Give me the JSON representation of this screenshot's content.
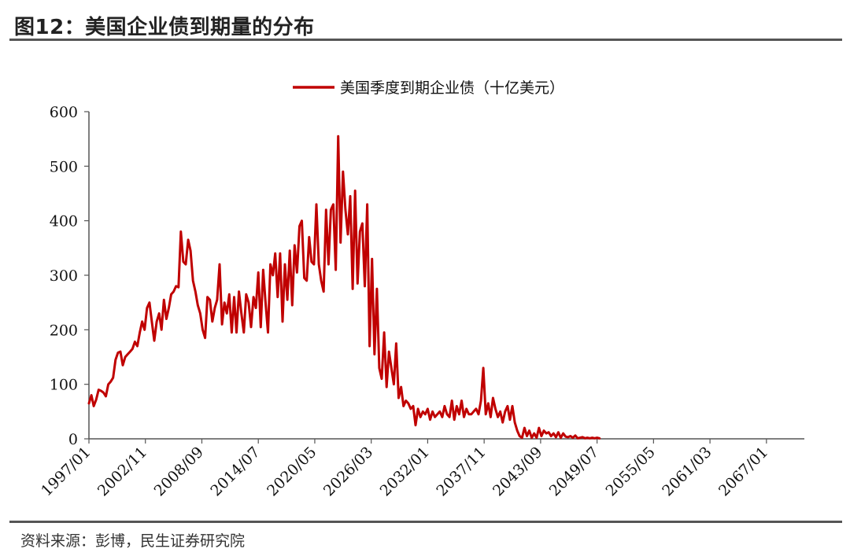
{
  "figure": {
    "title": "图12：美国企业债到期量的分布",
    "source": "资料来源：彭博，民生证券研究院"
  },
  "colors": {
    "series": "#c00000",
    "axis": "#555555",
    "rule": "#555555"
  },
  "chart_data": {
    "type": "line",
    "legend": {
      "position": "top-center"
    },
    "grid": false,
    "ylim": [
      0,
      600
    ],
    "yticks": [
      "0",
      "100",
      "200",
      "300",
      "400",
      "500",
      "600"
    ],
    "xticks": [
      "1997/01",
      "2002/11",
      "2008/09",
      "2014/07",
      "2020/05",
      "2026/03",
      "2032/01",
      "2037/11",
      "2043/09",
      "2049/07",
      "2055/05",
      "2061/03",
      "2067/01"
    ],
    "x_start": "1997/01",
    "x_end": "2070/12",
    "frequency": "quarterly",
    "series": [
      {
        "name": "美国季度到期企业债（十亿美元）",
        "keypoints": [
          [
            "1997/01",
            65
          ],
          [
            "1997/04",
            80
          ],
          [
            "1997/07",
            60
          ],
          [
            "1997/10",
            72
          ],
          [
            "1998/01",
            90
          ],
          [
            "1998/04",
            88
          ],
          [
            "1998/07",
            85
          ],
          [
            "1998/10",
            78
          ],
          [
            "1999/01",
            100
          ],
          [
            "1999/04",
            105
          ],
          [
            "1999/07",
            112
          ],
          [
            "1999/10",
            145
          ],
          [
            "2000/01",
            158
          ],
          [
            "2000/04",
            160
          ],
          [
            "2000/07",
            135
          ],
          [
            "2000/10",
            150
          ],
          [
            "2001/01",
            155
          ],
          [
            "2001/04",
            160
          ],
          [
            "2001/07",
            165
          ],
          [
            "2001/10",
            178
          ],
          [
            "2002/01",
            170
          ],
          [
            "2002/04",
            195
          ],
          [
            "2002/07",
            215
          ],
          [
            "2002/10",
            200
          ],
          [
            "2003/01",
            240
          ],
          [
            "2003/04",
            250
          ],
          [
            "2003/07",
            215
          ],
          [
            "2003/10",
            180
          ],
          [
            "2004/01",
            215
          ],
          [
            "2004/04",
            230
          ],
          [
            "2004/07",
            200
          ],
          [
            "2004/10",
            255
          ],
          [
            "2005/01",
            220
          ],
          [
            "2005/04",
            240
          ],
          [
            "2005/07",
            265
          ],
          [
            "2005/10",
            270
          ],
          [
            "2006/01",
            280
          ],
          [
            "2006/04",
            278
          ],
          [
            "2006/07",
            380
          ],
          [
            "2006/10",
            325
          ],
          [
            "2007/01",
            320
          ],
          [
            "2007/04",
            365
          ],
          [
            "2007/07",
            345
          ],
          [
            "2007/10",
            290
          ],
          [
            "2008/01",
            270
          ],
          [
            "2008/04",
            245
          ],
          [
            "2008/07",
            230
          ],
          [
            "2008/10",
            200
          ],
          [
            "2009/01",
            185
          ],
          [
            "2009/04",
            260
          ],
          [
            "2009/07",
            255
          ],
          [
            "2009/10",
            215
          ],
          [
            "2010/01",
            240
          ],
          [
            "2010/04",
            255
          ],
          [
            "2010/07",
            320
          ],
          [
            "2010/10",
            210
          ],
          [
            "2011/01",
            250
          ],
          [
            "2011/04",
            230
          ],
          [
            "2011/07",
            265
          ],
          [
            "2011/10",
            195
          ],
          [
            "2012/01",
            260
          ],
          [
            "2012/04",
            195
          ],
          [
            "2012/07",
            270
          ],
          [
            "2012/10",
            230
          ],
          [
            "2013/01",
            195
          ],
          [
            "2013/04",
            265
          ],
          [
            "2013/07",
            250
          ],
          [
            "2013/10",
            205
          ],
          [
            "2014/01",
            260
          ],
          [
            "2014/04",
            240
          ],
          [
            "2014/07",
            305
          ],
          [
            "2014/10",
            205
          ],
          [
            "2015/01",
            310
          ],
          [
            "2015/04",
            250
          ],
          [
            "2015/07",
            195
          ],
          [
            "2015/10",
            320
          ],
          [
            "2016/01",
            300
          ],
          [
            "2016/04",
            340
          ],
          [
            "2016/07",
            260
          ],
          [
            "2016/10",
            340
          ],
          [
            "2017/01",
            215
          ],
          [
            "2017/04",
            320
          ],
          [
            "2017/07",
            255
          ],
          [
            "2017/10",
            345
          ],
          [
            "2018/01",
            245
          ],
          [
            "2018/04",
            355
          ],
          [
            "2018/07",
            305
          ],
          [
            "2018/10",
            390
          ],
          [
            "2019/01",
            400
          ],
          [
            "2019/04",
            295
          ],
          [
            "2019/07",
            290
          ],
          [
            "2019/10",
            370
          ],
          [
            "2020/01",
            325
          ],
          [
            "2020/04",
            320
          ],
          [
            "2020/07",
            430
          ],
          [
            "2020/10",
            320
          ],
          [
            "2021/01",
            290
          ],
          [
            "2021/04",
            270
          ],
          [
            "2021/07",
            420
          ],
          [
            "2021/10",
            320
          ],
          [
            "2022/01",
            420
          ],
          [
            "2022/04",
            430
          ],
          [
            "2022/07",
            310
          ],
          [
            "2022/10",
            555
          ],
          [
            "2023/01",
            360
          ],
          [
            "2023/04",
            490
          ],
          [
            "2023/07",
            420
          ],
          [
            "2023/10",
            375
          ],
          [
            "2024/01",
            445
          ],
          [
            "2024/04",
            275
          ],
          [
            "2024/07",
            455
          ],
          [
            "2024/10",
            285
          ],
          [
            "2025/01",
            380
          ],
          [
            "2025/04",
            395
          ],
          [
            "2025/07",
            280
          ],
          [
            "2025/10",
            430
          ],
          [
            "2026/01",
            170
          ],
          [
            "2026/04",
            330
          ],
          [
            "2026/07",
            155
          ],
          [
            "2026/10",
            275
          ],
          [
            "2027/01",
            130
          ],
          [
            "2027/04",
            110
          ],
          [
            "2027/07",
            195
          ],
          [
            "2027/10",
            95
          ],
          [
            "2028/01",
            160
          ],
          [
            "2028/04",
            130
          ],
          [
            "2028/07",
            100
          ],
          [
            "2028/10",
            175
          ],
          [
            "2029/01",
            75
          ],
          [
            "2029/04",
            95
          ],
          [
            "2029/07",
            60
          ],
          [
            "2029/10",
            70
          ],
          [
            "2030/01",
            65
          ],
          [
            "2030/04",
            55
          ],
          [
            "2030/07",
            60
          ],
          [
            "2030/10",
            25
          ],
          [
            "2031/01",
            55
          ],
          [
            "2031/04",
            40
          ],
          [
            "2031/07",
            50
          ],
          [
            "2031/10",
            45
          ],
          [
            "2032/01",
            55
          ],
          [
            "2032/04",
            35
          ],
          [
            "2032/07",
            50
          ],
          [
            "2032/10",
            40
          ],
          [
            "2033/01",
            45
          ],
          [
            "2033/04",
            50
          ],
          [
            "2033/07",
            40
          ],
          [
            "2033/10",
            60
          ],
          [
            "2034/01",
            45
          ],
          [
            "2034/04",
            40
          ],
          [
            "2034/07",
            70
          ],
          [
            "2034/10",
            35
          ],
          [
            "2035/01",
            60
          ],
          [
            "2035/04",
            45
          ],
          [
            "2035/07",
            70
          ],
          [
            "2035/10",
            40
          ],
          [
            "2036/01",
            55
          ],
          [
            "2036/04",
            45
          ],
          [
            "2036/07",
            45
          ],
          [
            "2036/10",
            50
          ],
          [
            "2037/01",
            55
          ],
          [
            "2037/04",
            45
          ],
          [
            "2037/07",
            70
          ],
          [
            "2037/10",
            130
          ],
          [
            "2038/01",
            45
          ],
          [
            "2038/04",
            65
          ],
          [
            "2038/07",
            40
          ],
          [
            "2038/10",
            75
          ],
          [
            "2039/01",
            55
          ],
          [
            "2039/04",
            40
          ],
          [
            "2039/07",
            50
          ],
          [
            "2039/10",
            30
          ],
          [
            "2040/01",
            50
          ],
          [
            "2040/04",
            60
          ],
          [
            "2040/07",
            35
          ],
          [
            "2040/10",
            60
          ],
          [
            "2041/01",
            30
          ],
          [
            "2041/04",
            15
          ],
          [
            "2041/07",
            5
          ],
          [
            "2041/10",
            2
          ],
          [
            "2042/01",
            20
          ],
          [
            "2042/04",
            5
          ],
          [
            "2042/07",
            15
          ],
          [
            "2042/10",
            2
          ],
          [
            "2043/01",
            10
          ],
          [
            "2043/04",
            2
          ],
          [
            "2043/07",
            20
          ],
          [
            "2043/10",
            5
          ],
          [
            "2044/01",
            15
          ],
          [
            "2044/04",
            10
          ],
          [
            "2044/07",
            12
          ],
          [
            "2044/10",
            5
          ],
          [
            "2045/01",
            10
          ],
          [
            "2045/04",
            3
          ],
          [
            "2045/07",
            12
          ],
          [
            "2045/10",
            2
          ],
          [
            "2046/01",
            10
          ],
          [
            "2046/04",
            4
          ],
          [
            "2046/07",
            3
          ],
          [
            "2046/10",
            5
          ],
          [
            "2047/01",
            2
          ],
          [
            "2047/04",
            6
          ],
          [
            "2047/07",
            1
          ],
          [
            "2047/10",
            2
          ],
          [
            "2048/01",
            3
          ],
          [
            "2048/04",
            1
          ],
          [
            "2048/07",
            2
          ],
          [
            "2048/10",
            1
          ],
          [
            "2049/01",
            2
          ],
          [
            "2049/04",
            1
          ],
          [
            "2049/07",
            2
          ],
          [
            "2049/10",
            1
          ]
        ]
      }
    ]
  }
}
